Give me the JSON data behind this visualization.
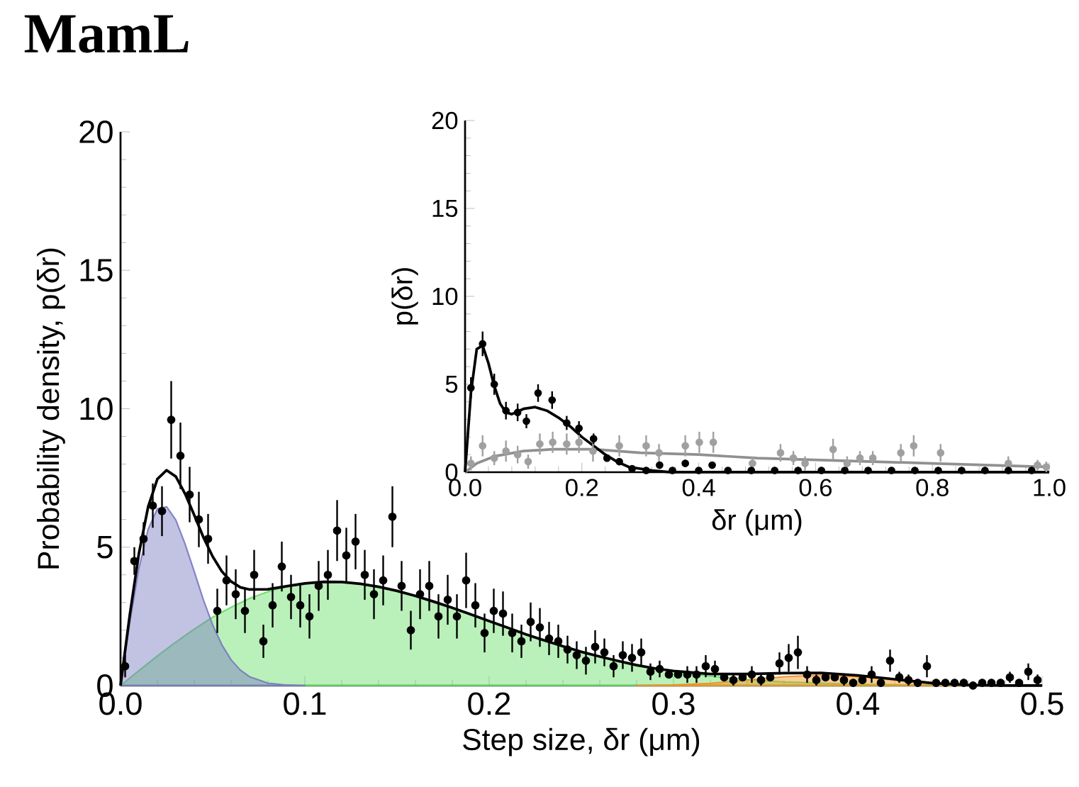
{
  "chart_data": [
    {
      "type": "scatter",
      "title": "MamL",
      "xlabel": "Step size, δr (μm)",
      "ylabel": "Probability density, p(δr)",
      "xlim": [
        0,
        0.5
      ],
      "ylim": [
        0,
        20
      ],
      "xticks": [
        {
          "value": 0,
          "label": "0.0"
        },
        {
          "value": 0.1,
          "label": "0.1"
        },
        {
          "value": 0.2,
          "label": "0.2"
        },
        {
          "value": 0.3,
          "label": "0.3"
        },
        {
          "value": 0.4,
          "label": "0.4"
        },
        {
          "value": 0.5,
          "label": "0.5"
        }
      ],
      "yticks": [
        0,
        5,
        10,
        15,
        20
      ],
      "series": [
        {
          "type": "area",
          "color": "#66dd66",
          "x": [
            0,
            0.01,
            0.02,
            0.03,
            0.04,
            0.05,
            0.06,
            0.07,
            0.08,
            0.09,
            0.1,
            0.11,
            0.12,
            0.13,
            0.14,
            0.15,
            0.16,
            0.17,
            0.18,
            0.19,
            0.2,
            0.21,
            0.22,
            0.23,
            0.24,
            0.25,
            0.26,
            0.27,
            0.28,
            0.29,
            0.3,
            0.32,
            0.34,
            0.36,
            0.4,
            0.45,
            0.5
          ],
          "values": [
            0,
            0.54,
            1.07,
            1.57,
            2.04,
            2.47,
            2.83,
            3.15,
            3.39,
            3.57,
            3.69,
            3.75,
            3.74,
            3.68,
            3.57,
            3.42,
            3.24,
            3.03,
            2.81,
            2.57,
            2.33,
            2.09,
            1.85,
            1.63,
            1.42,
            1.22,
            1.05,
            0.89,
            0.74,
            0.62,
            0.51,
            0.34,
            0.22,
            0.13,
            0.05,
            0.01,
            0
          ]
        },
        {
          "type": "area",
          "color": "#f0901e",
          "x": [
            0.28,
            0.3,
            0.32,
            0.34,
            0.36,
            0.38,
            0.4,
            0.42,
            0.44,
            0.46,
            0.48,
            0.5
          ],
          "values": [
            0,
            0.02,
            0.08,
            0.2,
            0.32,
            0.38,
            0.32,
            0.2,
            0.08,
            0.02,
            0,
            0
          ]
        },
        {
          "type": "area",
          "color": "#7878c0",
          "x": [
            0,
            0.005,
            0.01,
            0.015,
            0.02,
            0.025,
            0.03,
            0.035,
            0.04,
            0.045,
            0.05,
            0.055,
            0.06,
            0.065,
            0.07,
            0.08,
            0.09,
            0.1
          ],
          "values": [
            0,
            2.27,
            4.24,
            5.65,
            6.39,
            6.46,
            5.98,
            5.12,
            4.12,
            3.09,
            2.19,
            1.47,
            0.93,
            0.56,
            0.32,
            0.09,
            0.02,
            0
          ]
        },
        {
          "type": "line",
          "color": "#000000",
          "x": [
            0,
            0.005,
            0.01,
            0.015,
            0.02,
            0.025,
            0.03,
            0.035,
            0.04,
            0.045,
            0.05,
            0.055,
            0.06,
            0.065,
            0.07,
            0.08,
            0.09,
            0.1,
            0.11,
            0.12,
            0.13,
            0.14,
            0.15,
            0.16,
            0.17,
            0.18,
            0.19,
            0.2,
            0.21,
            0.22,
            0.23,
            0.24,
            0.25,
            0.26,
            0.27,
            0.28,
            0.29,
            0.3,
            0.32,
            0.34,
            0.36,
            0.38,
            0.4,
            0.42,
            0.44,
            0.46,
            0.48,
            0.5
          ],
          "values": [
            0,
            2.54,
            4.78,
            6.46,
            7.46,
            7.78,
            7.55,
            6.93,
            6.16,
            5.35,
            4.66,
            4.12,
            3.76,
            3.55,
            3.47,
            3.48,
            3.59,
            3.69,
            3.75,
            3.74,
            3.68,
            3.57,
            3.42,
            3.24,
            3.03,
            2.81,
            2.57,
            2.33,
            2.09,
            1.85,
            1.63,
            1.42,
            1.22,
            1.05,
            0.89,
            0.74,
            0.62,
            0.53,
            0.42,
            0.42,
            0.45,
            0.46,
            0.37,
            0.23,
            0.09,
            0.02,
            0,
            0
          ]
        },
        {
          "marker": "circle",
          "color": "#000000",
          "x": [
            0.0025,
            0.0075,
            0.0125,
            0.0175,
            0.0225,
            0.0275,
            0.0325,
            0.0375,
            0.0425,
            0.0475,
            0.0525,
            0.0575,
            0.0625,
            0.0675,
            0.0725,
            0.0775,
            0.0825,
            0.0875,
            0.0925,
            0.0975,
            0.1025,
            0.1075,
            0.1125,
            0.1175,
            0.1225,
            0.1275,
            0.1325,
            0.1375,
            0.1425,
            0.1475,
            0.1525,
            0.1575,
            0.1625,
            0.1675,
            0.1725,
            0.1775,
            0.1825,
            0.1875,
            0.1925,
            0.1975,
            0.2025,
            0.2075,
            0.2125,
            0.2175,
            0.2225,
            0.2275,
            0.2325,
            0.2375,
            0.2425,
            0.2475,
            0.2525,
            0.2575,
            0.2625,
            0.2675,
            0.2725,
            0.2775,
            0.2825,
            0.2875,
            0.2925,
            0.2975,
            0.3025,
            0.3075,
            0.3125,
            0.3175,
            0.3225,
            0.3275,
            0.3325,
            0.3375,
            0.3425,
            0.3475,
            0.3525,
            0.3575,
            0.3625,
            0.3675,
            0.3725,
            0.3775,
            0.3825,
            0.3875,
            0.3925,
            0.3975,
            0.4025,
            0.4075,
            0.4125,
            0.4175,
            0.4225,
            0.4275,
            0.4325,
            0.4375,
            0.4425,
            0.4475,
            0.4525,
            0.4575,
            0.4625,
            0.4675,
            0.4725,
            0.4775,
            0.4825,
            0.4875,
            0.4925,
            0.4975
          ],
          "values": [
            0.7,
            4.5,
            5.3,
            6.5,
            6.3,
            9.6,
            8.3,
            6.9,
            6.0,
            5.3,
            2.7,
            3.8,
            3.3,
            2.7,
            4.0,
            1.6,
            2.9,
            4.3,
            3.2,
            2.9,
            2.5,
            3.6,
            4.0,
            5.6,
            4.7,
            5.2,
            4.0,
            3.3,
            3.8,
            6.1,
            3.6,
            2.0,
            3.3,
            3.6,
            2.5,
            3.1,
            2.5,
            3.8,
            2.9,
            1.9,
            2.7,
            2.6,
            1.9,
            1.6,
            2.3,
            2.1,
            1.7,
            1.6,
            1.3,
            1.1,
            0.9,
            1.4,
            1.2,
            0.7,
            1.1,
            1.0,
            1.2,
            0.5,
            0.6,
            0.4,
            0.4,
            0.4,
            0.4,
            0.7,
            0.6,
            0.3,
            0.2,
            0.3,
            0.4,
            0.2,
            0.3,
            0.8,
            1.0,
            1.2,
            0.4,
            0.2,
            0.3,
            0.3,
            0.2,
            0.1,
            0.2,
            0.4,
            0.1,
            0.9,
            0.3,
            0.2,
            0.1,
            0.7,
            0.1,
            0.1,
            0.1,
            0.1,
            0.0,
            0.1,
            0.1,
            0.1,
            0.3,
            0.1,
            0.5,
            0.2
          ],
          "errors": [
            0.4,
            0.5,
            0.6,
            0.8,
            0.9,
            1.4,
            1.2,
            1.0,
            1.0,
            0.9,
            0.8,
            0.9,
            0.9,
            0.8,
            0.9,
            0.6,
            0.8,
            0.9,
            0.8,
            0.8,
            0.8,
            0.9,
            0.9,
            1.1,
            1.0,
            1.0,
            0.9,
            0.9,
            0.9,
            1.1,
            0.9,
            0.7,
            0.9,
            0.9,
            0.8,
            0.9,
            0.8,
            1.0,
            0.8,
            0.7,
            0.8,
            0.8,
            0.7,
            0.6,
            0.7,
            0.7,
            0.6,
            0.6,
            0.5,
            0.5,
            0.5,
            0.6,
            0.5,
            0.4,
            0.5,
            0.5,
            0.5,
            0.3,
            0.3,
            null,
            null,
            0.3,
            0.3,
            0.4,
            0.3,
            null,
            0.2,
            null,
            0.3,
            0.2,
            null,
            0.4,
            0.5,
            0.6,
            0.3,
            0.2,
            null,
            null,
            0.2,
            0.1,
            null,
            0.3,
            0.1,
            0.4,
            0.2,
            0.2,
            0.1,
            0.4,
            0.1,
            0.1,
            0.1,
            0.1,
            0.1,
            0.1,
            0.1,
            0.1,
            0.2,
            0.1,
            0.3,
            0.2
          ]
        }
      ]
    },
    {
      "type": "scatter",
      "xlabel": "δr (μm)",
      "ylabel": "p(δr)",
      "xlim": [
        0,
        1
      ],
      "ylim": [
        0,
        20
      ],
      "xticks": [
        {
          "value": 0,
          "label": "0.0"
        },
        {
          "value": 0.2,
          "label": "0.2"
        },
        {
          "value": 0.4,
          "label": "0.4"
        },
        {
          "value": 0.6,
          "label": "0.6"
        },
        {
          "value": 0.8,
          "label": "0.8"
        },
        {
          "value": 1,
          "label": "1.0"
        }
      ],
      "yticks": [
        0,
        5,
        10,
        15,
        20
      ],
      "series": [
        {
          "type": "line",
          "color": "#909090",
          "x": [
            0,
            0.02,
            0.05,
            0.1,
            0.15,
            0.18,
            0.22,
            0.26,
            0.3,
            0.4,
            0.5,
            0.6,
            0.7,
            0.8,
            0.9,
            1.0
          ],
          "values": [
            0,
            0.5,
            0.9,
            1.2,
            1.3,
            1.3,
            1.3,
            1.2,
            1.1,
            1.0,
            0.8,
            0.7,
            0.6,
            0.5,
            0.4,
            0.3
          ]
        },
        {
          "type": "line",
          "color": "#000000",
          "x": [
            0,
            0.01,
            0.02,
            0.03,
            0.04,
            0.05,
            0.06,
            0.07,
            0.08,
            0.1,
            0.12,
            0.14,
            0.16,
            0.18,
            0.2,
            0.22,
            0.24,
            0.26,
            0.28,
            0.3,
            0.32,
            0.35,
            0.4,
            0.6,
            0.8,
            1.0
          ],
          "values": [
            0,
            4.5,
            7.0,
            7.2,
            6.2,
            4.9,
            3.9,
            3.4,
            3.3,
            3.6,
            3.7,
            3.5,
            3.1,
            2.6,
            2.0,
            1.5,
            1.0,
            0.6,
            0.3,
            0.2,
            0.1,
            0.0,
            0,
            0,
            0,
            0
          ]
        },
        {
          "marker": "circle",
          "color": "#a0a0a0",
          "x": [
            0.01,
            0.03,
            0.05,
            0.07,
            0.09,
            0.108,
            0.128,
            0.15,
            0.174,
            0.195,
            0.219,
            0.24,
            0.264,
            0.31,
            0.332,
            0.377,
            0.401,
            0.425,
            0.492,
            0.54,
            0.562,
            0.582,
            0.63,
            0.654,
            0.676,
            0.698,
            0.746,
            0.768,
            0.814,
            0.93,
            0.98,
            0.995
          ],
          "values": [
            0.5,
            1.5,
            0.8,
            1.2,
            1.0,
            0.6,
            1.6,
            1.7,
            1.6,
            1.7,
            1.2,
            null,
            1.5,
            1.5,
            1.1,
            1.5,
            1.7,
            1.7,
            0.5,
            1.1,
            0.8,
            0.5,
            1.3,
            0.5,
            0.8,
            0.8,
            1.1,
            1.5,
            1.1,
            0.5,
            0.4,
            0.3
          ],
          "errors": [
            0.4,
            0.6,
            0.4,
            0.6,
            0.5,
            0.4,
            0.6,
            0.6,
            0.6,
            0.6,
            0.6,
            null,
            0.6,
            0.6,
            0.5,
            0.6,
            0.6,
            0.6,
            0.4,
            0.5,
            0.4,
            0.4,
            0.6,
            0.4,
            0.4,
            0.4,
            0.5,
            0.6,
            0.5,
            0.4,
            0.3,
            0.3
          ]
        },
        {
          "marker": "circle",
          "color": "#000000",
          "x": [
            0.01,
            0.03,
            0.05,
            0.07,
            0.09,
            0.105,
            0.125,
            0.149,
            0.174,
            0.195,
            0.22,
            0.243,
            0.264,
            0.286,
            0.31,
            0.333,
            0.355,
            0.377,
            0.4,
            0.423,
            0.45,
            0.49,
            0.53,
            0.57,
            0.61,
            0.65,
            0.69,
            0.73,
            0.77,
            0.81,
            0.85,
            0.89,
            0.93,
            0.97
          ],
          "values": [
            4.8,
            7.3,
            5.0,
            3.5,
            3.4,
            2.9,
            4.5,
            4.1,
            2.8,
            2.5,
            1.9,
            0.8,
            0.6,
            0.2,
            0.1,
            0.4,
            0.1,
            0.5,
            0.1,
            0.4,
            0.1,
            0.1,
            0.1,
            0.1,
            0.1,
            0.1,
            0.1,
            0.1,
            0.1,
            0.1,
            0.1,
            0.1,
            0.1,
            0.1
          ],
          "errors": [
            0.6,
            0.7,
            0.6,
            0.5,
            0.5,
            0.4,
            0.5,
            0.5,
            0.4,
            0.4,
            0.3,
            0.2,
            0.2,
            0.1,
            0.1,
            0.2,
            0.1,
            0.2,
            0.1,
            0.2,
            0.1,
            0.1,
            0.1,
            0.1,
            0.1,
            0.1,
            0.1,
            0.1,
            0.1,
            0.1,
            0.1,
            0.1,
            0.1,
            0.1
          ]
        }
      ]
    }
  ]
}
